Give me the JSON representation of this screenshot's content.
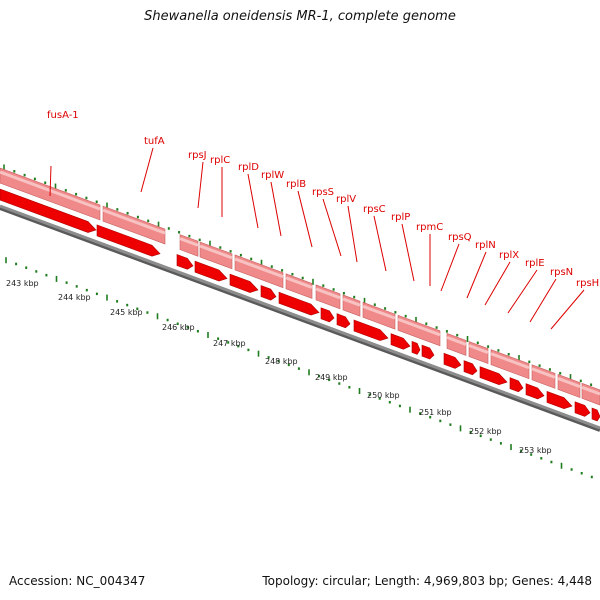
{
  "title": "Shewanella oneidensis MR-1, complete genome",
  "footer": {
    "accession": "Accession: NC_004347",
    "summary": "Topology: circular; Length: 4,969,803 bp; Genes: 4,448"
  },
  "colors": {
    "gene_label": "#dd0000",
    "gene_arrow": "#ee0000",
    "gene_band": "#f08a8a",
    "backbone": "#8c8c8c",
    "tick": "#1e7d1e"
  },
  "kbp_labels": [
    "243 kbp",
    "244 kbp",
    "245 kbp",
    "246 kbp",
    "247 kbp",
    "248 kbp",
    "249 kbp",
    "250 kbp",
    "251 kbp",
    "252 kbp",
    "253 kbp"
  ],
  "genes": [
    "fusA-1",
    "tufA",
    "rpsJ",
    "rplC",
    "rplD",
    "rplW",
    "rplB",
    "rpsS",
    "rplV",
    "rpsC",
    "rplP",
    "rpmC",
    "rpsQ",
    "rplN",
    "rplX",
    "rplE",
    "rpsN",
    "rpsH"
  ]
}
